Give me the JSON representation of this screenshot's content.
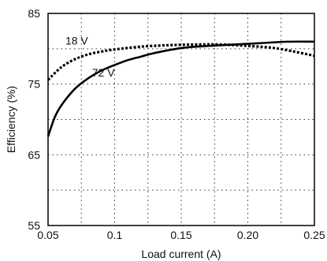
{
  "chart_data": {
    "type": "line",
    "xlabel": "Load current (A)",
    "ylabel": "Efficiency (%)",
    "xlim": [
      0.05,
      0.25
    ],
    "ylim": [
      55,
      85
    ],
    "x_ticks": [
      0.05,
      0.1,
      0.15,
      0.2,
      0.25
    ],
    "x_tick_labels": [
      "0.05",
      "0.1",
      "0.15",
      "0.20",
      "0.25"
    ],
    "x_minor_grid": [
      0.075,
      0.125,
      0.175,
      0.225
    ],
    "y_ticks": [
      55,
      65,
      75,
      85
    ],
    "y_tick_labels": [
      "55",
      "65",
      "75",
      "85"
    ],
    "y_minor_grid": [
      60,
      70,
      80
    ],
    "grid": true,
    "series": [
      {
        "name": "18 V",
        "style": "dotted",
        "color": "#000000",
        "x": [
          0.05,
          0.06,
          0.07,
          0.08,
          0.09,
          0.1,
          0.12,
          0.14,
          0.16,
          0.18,
          0.2,
          0.22,
          0.24,
          0.25
        ],
        "y": [
          75.6,
          77.4,
          78.5,
          79.2,
          79.6,
          79.9,
          80.3,
          80.5,
          80.6,
          80.6,
          80.4,
          80.1,
          79.4,
          79.0
        ]
      },
      {
        "name": "72 V",
        "style": "solid",
        "color": "#000000",
        "x": [
          0.05,
          0.055,
          0.06,
          0.07,
          0.08,
          0.09,
          0.1,
          0.11,
          0.12,
          0.13,
          0.15,
          0.17,
          0.19,
          0.21,
          0.23,
          0.25
        ],
        "y": [
          67.6,
          70.3,
          72.0,
          74.3,
          75.8,
          76.9,
          77.7,
          78.4,
          78.9,
          79.4,
          80.1,
          80.4,
          80.6,
          80.8,
          81.0,
          81.0
        ]
      }
    ]
  }
}
